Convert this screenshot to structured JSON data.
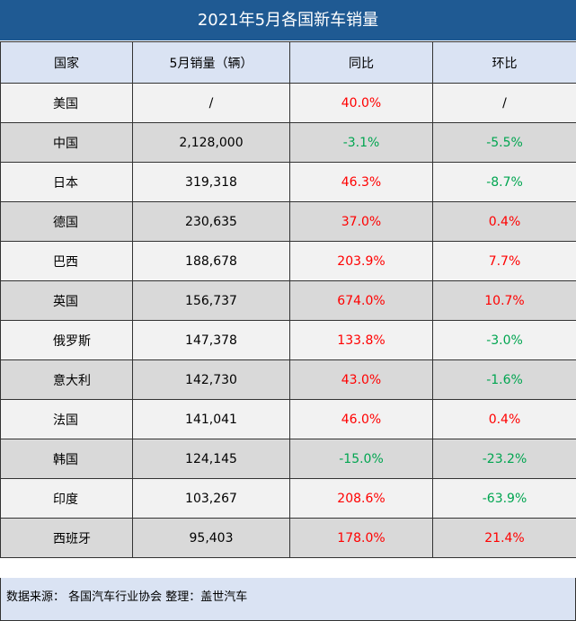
{
  "title": "2021年5月各国新车销量",
  "headers": [
    "国家",
    "5月销量（辆）",
    "同比",
    "环比"
  ],
  "rows": [
    {
      "country": "美国",
      "sales": "/",
      "yoy": "40.0%",
      "yoy_sign": "pos",
      "mom": "/",
      "mom_sign": "plain"
    },
    {
      "country": "中国",
      "sales": "2,128,000",
      "yoy": "-3.1%",
      "yoy_sign": "neg",
      "mom": "-5.5%",
      "mom_sign": "neg"
    },
    {
      "country": "日本",
      "sales": "319,318",
      "yoy": "46.3%",
      "yoy_sign": "pos",
      "mom": "-8.7%",
      "mom_sign": "neg"
    },
    {
      "country": "德国",
      "sales": "230,635",
      "yoy": "37.0%",
      "yoy_sign": "pos",
      "mom": "0.4%",
      "mom_sign": "pos"
    },
    {
      "country": "巴西",
      "sales": "188,678",
      "yoy": "203.9%",
      "yoy_sign": "pos",
      "mom": "7.7%",
      "mom_sign": "pos"
    },
    {
      "country": "英国",
      "sales": "156,737",
      "yoy": "674.0%",
      "yoy_sign": "pos",
      "mom": "10.7%",
      "mom_sign": "pos"
    },
    {
      "country": "俄罗斯",
      "sales": "147,378",
      "yoy": "133.8%",
      "yoy_sign": "pos",
      "mom": "-3.0%",
      "mom_sign": "neg"
    },
    {
      "country": "意大利",
      "sales": "142,730",
      "yoy": "43.0%",
      "yoy_sign": "pos",
      "mom": "-1.6%",
      "mom_sign": "neg"
    },
    {
      "country": "法国",
      "sales": "141,041",
      "yoy": "46.0%",
      "yoy_sign": "pos",
      "mom": "0.4%",
      "mom_sign": "pos"
    },
    {
      "country": "韩国",
      "sales": "124,145",
      "yoy": "-15.0%",
      "yoy_sign": "neg",
      "mom": "-23.2%",
      "mom_sign": "neg"
    },
    {
      "country": "印度",
      "sales": "103,267",
      "yoy": "208.6%",
      "yoy_sign": "pos",
      "mom": "-63.9%",
      "mom_sign": "neg"
    },
    {
      "country": "西班牙",
      "sales": "95,403",
      "yoy": "178.0%",
      "yoy_sign": "pos",
      "mom": "21.4%",
      "mom_sign": "pos"
    }
  ],
  "footer": "数据来源： 各国汽车行业协会 整理：盖世汽车",
  "colors": {
    "title_bg": "#1f5a93",
    "header_bg": "#dae3f3",
    "positive": "#ff0000",
    "negative": "#00a550"
  }
}
